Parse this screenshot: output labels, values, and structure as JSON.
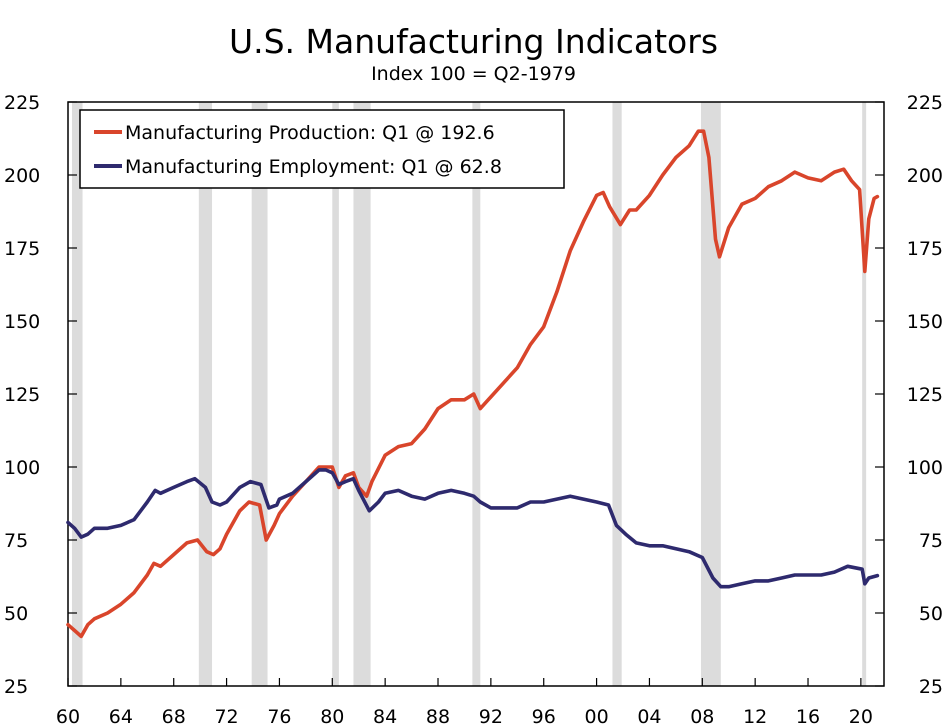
{
  "chart_data": {
    "type": "line",
    "title": "U.S. Manufacturing Indicators",
    "subtitle": "Index 100 = Q2-1979",
    "xlabel": "",
    "ylabel": "",
    "xlim": [
      1960,
      2021.75
    ],
    "ylim": [
      25,
      225
    ],
    "y_ticks": [
      25,
      50,
      75,
      100,
      125,
      150,
      175,
      200,
      225
    ],
    "y_tick_labels": [
      "25",
      "50",
      "75",
      "100",
      "125",
      "150",
      "175",
      "200",
      "225"
    ],
    "x_ticks": [
      1960,
      1964,
      1968,
      1972,
      1976,
      1980,
      1984,
      1988,
      1992,
      1996,
      2000,
      2004,
      2008,
      2012,
      2016,
      2020
    ],
    "x_tick_labels": [
      "60",
      "64",
      "68",
      "72",
      "76",
      "80",
      "84",
      "88",
      "92",
      "96",
      "00",
      "04",
      "08",
      "12",
      "16",
      "20"
    ],
    "recessions": [
      [
        1960.3,
        1961.1
      ],
      [
        1969.9,
        1970.9
      ],
      [
        1973.9,
        1975.1
      ],
      [
        1980.0,
        1980.5
      ],
      [
        1981.6,
        1982.9
      ],
      [
        1990.6,
        1991.2
      ],
      [
        2001.2,
        2001.9
      ],
      [
        2007.9,
        2009.4
      ],
      [
        2020.1,
        2020.4
      ]
    ],
    "legend_position": "top-left",
    "series": [
      {
        "name": "Manufacturing Production: Q1 @ 192.6",
        "color": "#d9452b",
        "points": [
          [
            1960,
            46
          ],
          [
            1960.5,
            44
          ],
          [
            1961,
            42
          ],
          [
            1961.5,
            46
          ],
          [
            1962,
            48
          ],
          [
            1963,
            50
          ],
          [
            1964,
            53
          ],
          [
            1965,
            57
          ],
          [
            1966,
            63
          ],
          [
            1966.5,
            67
          ],
          [
            1967,
            66
          ],
          [
            1968,
            70
          ],
          [
            1969,
            74
          ],
          [
            1969.8,
            75
          ],
          [
            1970.5,
            71
          ],
          [
            1971,
            70
          ],
          [
            1971.5,
            72
          ],
          [
            1972,
            77
          ],
          [
            1973,
            85
          ],
          [
            1973.7,
            88
          ],
          [
            1974.5,
            87
          ],
          [
            1975,
            75
          ],
          [
            1975.6,
            80
          ],
          [
            1976,
            84
          ],
          [
            1977,
            90
          ],
          [
            1978,
            95
          ],
          [
            1979,
            100
          ],
          [
            1979.5,
            100
          ],
          [
            1980,
            100
          ],
          [
            1980.5,
            93
          ],
          [
            1981,
            97
          ],
          [
            1981.6,
            98
          ],
          [
            1982,
            93
          ],
          [
            1982.6,
            90
          ],
          [
            1983,
            95
          ],
          [
            1984,
            104
          ],
          [
            1985,
            107
          ],
          [
            1986,
            108
          ],
          [
            1987,
            113
          ],
          [
            1988,
            120
          ],
          [
            1989,
            123
          ],
          [
            1990,
            123
          ],
          [
            1990.7,
            125
          ],
          [
            1991.2,
            120
          ],
          [
            1991.8,
            123
          ],
          [
            1992,
            124
          ],
          [
            1993,
            129
          ],
          [
            1994,
            134
          ],
          [
            1995,
            142
          ],
          [
            1996,
            148
          ],
          [
            1997,
            160
          ],
          [
            1998,
            174
          ],
          [
            1999,
            184
          ],
          [
            2000,
            193
          ],
          [
            2000.5,
            194
          ],
          [
            2001,
            189
          ],
          [
            2001.8,
            183
          ],
          [
            2002.5,
            188
          ],
          [
            2003,
            188
          ],
          [
            2004,
            193
          ],
          [
            2005,
            200
          ],
          [
            2006,
            206
          ],
          [
            2007,
            210
          ],
          [
            2007.7,
            215
          ],
          [
            2008.1,
            215
          ],
          [
            2008.5,
            206
          ],
          [
            2009,
            178
          ],
          [
            2009.3,
            172
          ],
          [
            2010,
            182
          ],
          [
            2011,
            190
          ],
          [
            2012,
            192
          ],
          [
            2013,
            196
          ],
          [
            2014,
            198
          ],
          [
            2015,
            201
          ],
          [
            2016,
            199
          ],
          [
            2017,
            198
          ],
          [
            2018,
            201
          ],
          [
            2018.7,
            202
          ],
          [
            2019.3,
            198
          ],
          [
            2019.9,
            195
          ],
          [
            2020.3,
            167
          ],
          [
            2020.6,
            185
          ],
          [
            2021,
            192
          ],
          [
            2021.25,
            192.6
          ]
        ]
      },
      {
        "name": "Manufacturing Employment: Q1 @ 62.8",
        "color": "#2e2a6e",
        "points": [
          [
            1960,
            81
          ],
          [
            1960.5,
            79
          ],
          [
            1961,
            76
          ],
          [
            1961.5,
            77
          ],
          [
            1962,
            79
          ],
          [
            1963,
            79
          ],
          [
            1964,
            80
          ],
          [
            1965,
            82
          ],
          [
            1966,
            88
          ],
          [
            1966.6,
            92
          ],
          [
            1967,
            91
          ],
          [
            1968,
            93
          ],
          [
            1969,
            95
          ],
          [
            1969.6,
            96
          ],
          [
            1970.4,
            93
          ],
          [
            1970.9,
            88
          ],
          [
            1971.5,
            87
          ],
          [
            1972,
            88
          ],
          [
            1973,
            93
          ],
          [
            1973.8,
            95
          ],
          [
            1974.6,
            94
          ],
          [
            1975.2,
            86
          ],
          [
            1975.8,
            87
          ],
          [
            1976,
            89
          ],
          [
            1977,
            91
          ],
          [
            1978,
            95
          ],
          [
            1979,
            99
          ],
          [
            1979.5,
            99
          ],
          [
            1980,
            98
          ],
          [
            1980.5,
            94
          ],
          [
            1981,
            95
          ],
          [
            1981.6,
            96
          ],
          [
            1982,
            92
          ],
          [
            1982.8,
            85
          ],
          [
            1983.5,
            88
          ],
          [
            1984,
            91
          ],
          [
            1985,
            92
          ],
          [
            1986,
            90
          ],
          [
            1987,
            89
          ],
          [
            1988,
            91
          ],
          [
            1989,
            92
          ],
          [
            1990,
            91
          ],
          [
            1990.7,
            90
          ],
          [
            1991.2,
            88
          ],
          [
            1992,
            86
          ],
          [
            1993,
            86
          ],
          [
            1994,
            86
          ],
          [
            1995,
            88
          ],
          [
            1996,
            88
          ],
          [
            1997,
            89
          ],
          [
            1998,
            90
          ],
          [
            1999,
            89
          ],
          [
            2000,
            88
          ],
          [
            2000.9,
            87
          ],
          [
            2001.5,
            80
          ],
          [
            2002.2,
            77
          ],
          [
            2003,
            74
          ],
          [
            2004,
            73
          ],
          [
            2005,
            73
          ],
          [
            2006,
            72
          ],
          [
            2007,
            71
          ],
          [
            2008,
            69
          ],
          [
            2008.8,
            62
          ],
          [
            2009.4,
            59
          ],
          [
            2010,
            59
          ],
          [
            2011,
            60
          ],
          [
            2012,
            61
          ],
          [
            2013,
            61
          ],
          [
            2014,
            62
          ],
          [
            2015,
            63
          ],
          [
            2016,
            63
          ],
          [
            2017,
            63
          ],
          [
            2018,
            64
          ],
          [
            2019,
            66
          ],
          [
            2020.1,
            65
          ],
          [
            2020.3,
            60
          ],
          [
            2020.6,
            62
          ],
          [
            2021.25,
            62.8
          ]
        ]
      }
    ]
  }
}
